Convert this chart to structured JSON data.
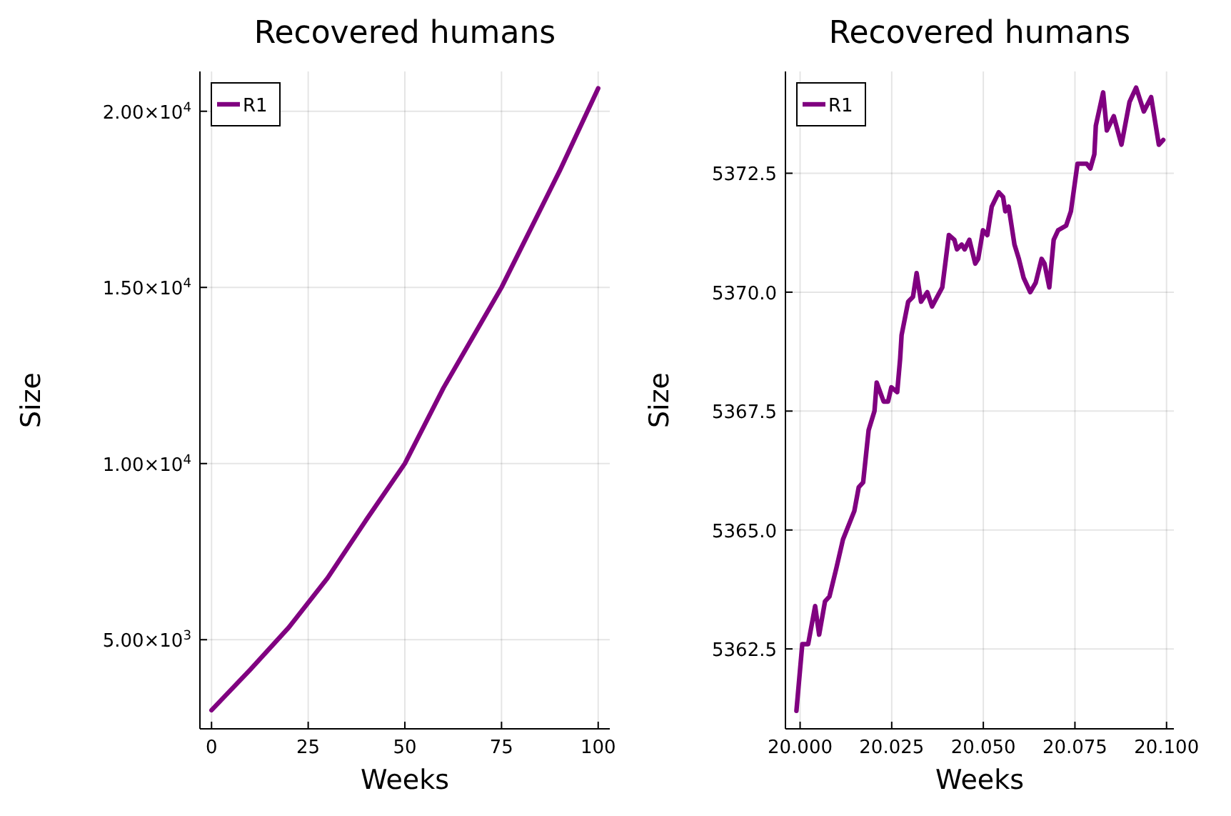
{
  "chart_data": [
    {
      "type": "line",
      "title": "Recovered humans",
      "xlabel": "Weeks",
      "ylabel": "Size",
      "x": [
        0,
        10,
        20,
        30,
        40,
        50,
        60,
        70,
        75,
        80,
        90,
        100
      ],
      "series": [
        {
          "name": "R1",
          "color": "#800080",
          "values": [
            3000,
            4150,
            5350,
            6750,
            8400,
            10000,
            12150,
            14050,
            15000,
            16100,
            18300,
            20650
          ]
        }
      ],
      "xlim": [
        -3,
        103
      ],
      "xticks": [
        0,
        25,
        50,
        75,
        100
      ],
      "ylim": [
        2470,
        21130
      ],
      "yticks": [
        {
          "value": 5000,
          "label": "5.00×10$^{3}$"
        },
        {
          "value": 10000,
          "label": "1.00×10$^{4}$"
        },
        {
          "value": 15000,
          "label": "1.50×10$^{4}$"
        },
        {
          "value": 20000,
          "label": "2.00×10$^{4}$"
        }
      ],
      "grid": true,
      "legend": "top left",
      "line_style": "solid",
      "marker": "none"
    },
    {
      "type": "line",
      "title": "Recovered humans",
      "xlabel": "Weeks",
      "ylabel": "Size",
      "x": [
        19.999,
        20.0006,
        20.0022,
        20.0041,
        20.0052,
        20.0068,
        20.008,
        20.0099,
        20.0117,
        20.0148,
        20.016,
        20.0172,
        20.0187,
        20.0203,
        20.0209,
        20.0228,
        20.024,
        20.0249,
        20.0265,
        20.0273,
        20.0277,
        20.0295,
        20.0308,
        20.0318,
        20.033,
        20.0347,
        20.036,
        20.0388,
        20.0406,
        20.0421,
        20.0428,
        20.0441,
        20.0449,
        20.0462,
        20.0478,
        20.0486,
        20.0499,
        20.0511,
        20.0523,
        20.0542,
        20.0554,
        20.056,
        20.0569,
        20.0585,
        20.0597,
        20.061,
        20.0628,
        20.0643,
        20.0659,
        20.0667,
        20.068,
        20.0692,
        20.0704,
        20.0726,
        20.0739,
        20.0757,
        20.0772,
        20.0782,
        20.0792,
        20.0803,
        20.0807,
        20.0827,
        20.0837,
        20.0856,
        20.0877,
        20.0899,
        20.0917,
        20.0938,
        20.0958,
        20.0979,
        20.0991
      ],
      "series": [
        {
          "name": "R1",
          "color": "#800080",
          "values": [
            5361.2,
            5362.6,
            5362.6,
            5363.4,
            5362.8,
            5363.5,
            5363.6,
            5364.2,
            5364.8,
            5365.4,
            5365.9,
            5366.0,
            5367.1,
            5367.5,
            5368.1,
            5367.7,
            5367.7,
            5368.0,
            5367.9,
            5368.6,
            5369.1,
            5369.8,
            5369.9,
            5370.4,
            5369.8,
            5370.0,
            5369.7,
            5370.1,
            5371.2,
            5371.1,
            5370.9,
            5371.0,
            5370.9,
            5371.1,
            5370.6,
            5370.7,
            5371.3,
            5371.2,
            5371.8,
            5372.1,
            5372.0,
            5371.7,
            5371.8,
            5371.0,
            5370.7,
            5370.3,
            5370.0,
            5370.2,
            5370.7,
            5370.6,
            5370.1,
            5371.1,
            5371.3,
            5371.4,
            5371.7,
            5372.7,
            5372.7,
            5372.7,
            5372.6,
            5372.9,
            5373.5,
            5374.2,
            5373.4,
            5373.7,
            5373.1,
            5374.0,
            5374.3,
            5373.8,
            5374.1,
            5373.1,
            5373.2
          ]
        }
      ],
      "xlim": [
        19.996,
        20.102
      ],
      "xticks": [
        {
          "value": 20,
          "label": "20.000"
        },
        {
          "value": 20.025,
          "label": "20.025"
        },
        {
          "value": 20.05,
          "label": "20.050"
        },
        {
          "value": 20.075,
          "label": "20.075"
        },
        {
          "value": 20.1,
          "label": "20.100"
        }
      ],
      "ylim": [
        5360.82,
        5374.64
      ],
      "yticks": [
        {
          "value": 5362.5,
          "label": "5362.5"
        },
        {
          "value": 5365,
          "label": "5365.0"
        },
        {
          "value": 5367.5,
          "label": "5367.5"
        },
        {
          "value": 5370,
          "label": "5370.0"
        },
        {
          "value": 5372.5,
          "label": "5372.5"
        }
      ],
      "grid": true,
      "legend": "top left",
      "line_style": "solid",
      "marker": "none"
    }
  ]
}
